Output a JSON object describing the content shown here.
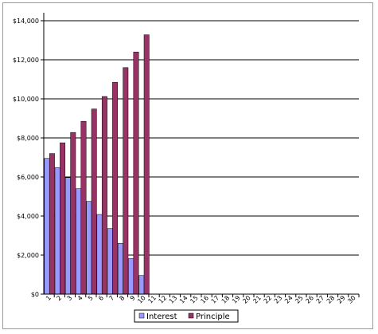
{
  "chart_data": {
    "type": "bar",
    "categories": [
      "1",
      "2",
      "3",
      "4",
      "5",
      "6",
      "7",
      "8",
      "9",
      "10",
      "11",
      "12",
      "13",
      "14",
      "15",
      "16",
      "17",
      "18",
      "19",
      "20",
      "21",
      "22",
      "23",
      "24",
      "25",
      "26",
      "27",
      "28",
      "29",
      "30"
    ],
    "series": [
      {
        "name": "Interest",
        "color": "#9999ff",
        "values": [
          6950,
          6480,
          5970,
          5400,
          4750,
          4080,
          3360,
          2600,
          1820,
          950,
          0,
          0,
          0,
          0,
          0,
          0,
          0,
          0,
          0,
          0,
          0,
          0,
          0,
          0,
          0,
          0,
          0,
          0,
          0,
          0
        ]
      },
      {
        "name": "Principle",
        "color": "#993366",
        "values": [
          7200,
          7750,
          8280,
          8850,
          9480,
          10120,
          10850,
          11600,
          12400,
          13280,
          0,
          0,
          0,
          0,
          0,
          0,
          0,
          0,
          0,
          0,
          0,
          0,
          0,
          0,
          0,
          0,
          0,
          0,
          0,
          0
        ]
      }
    ],
    "yticks": [
      "$0",
      "$2,000",
      "$4,000",
      "$6,000",
      "$8,000",
      "$10,000",
      "$12,000",
      "$14,000"
    ],
    "ylim": [
      0,
      14000
    ],
    "ygrid": true,
    "legend_position": "bottom-center"
  }
}
